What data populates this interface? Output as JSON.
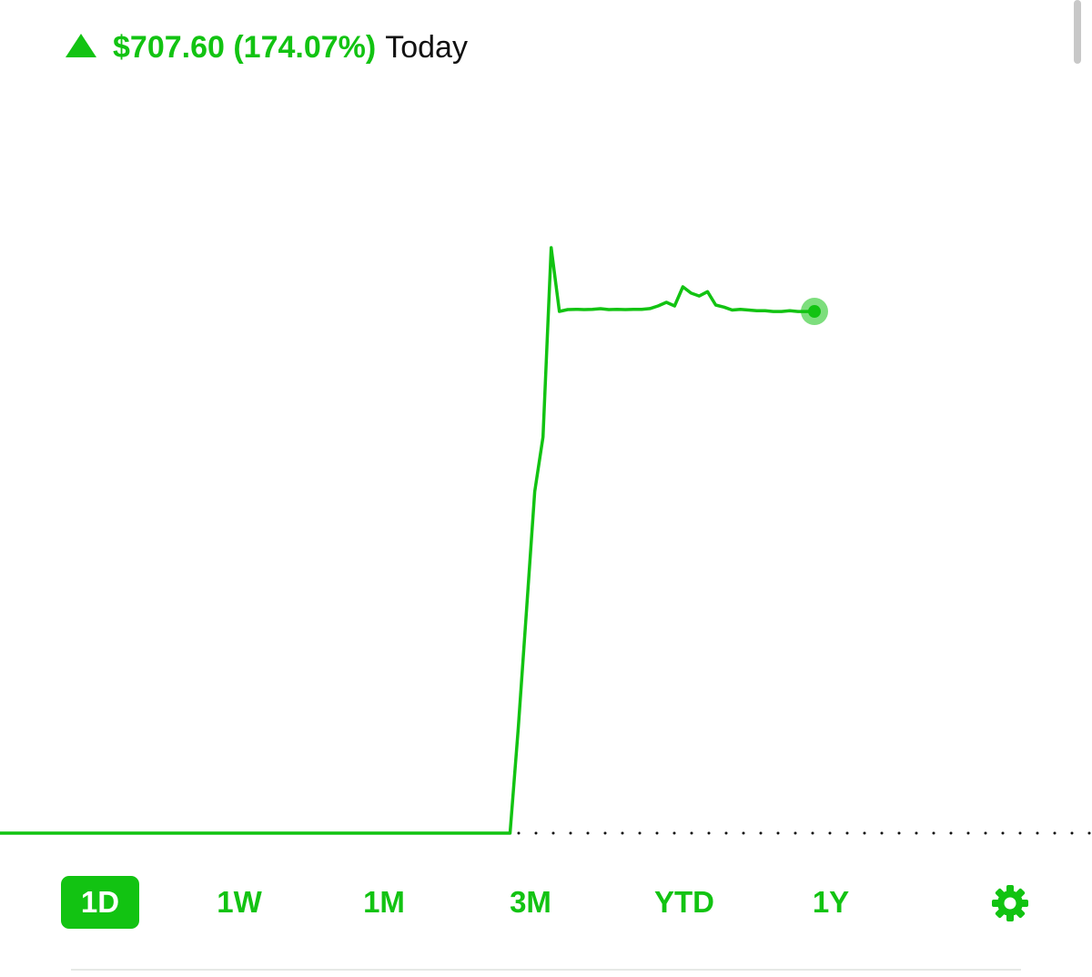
{
  "header": {
    "change": "$707.60 (174.07%)",
    "period": "Today"
  },
  "chart_data": {
    "type": "line",
    "color": "#12c312",
    "values": [
      406.5,
      406.5,
      406.5,
      406.5,
      406.5,
      406.5,
      406.5,
      406.5,
      406.5,
      406.5,
      406.5,
      406.5,
      406.5,
      406.5,
      406.5,
      406.5,
      406.5,
      406.5,
      406.5,
      406.5,
      406.5,
      406.5,
      406.5,
      406.5,
      406.5,
      406.5,
      406.5,
      406.5,
      406.5,
      406.5,
      406.5,
      406.5,
      406.5,
      406.5,
      406.5,
      406.5,
      406.5,
      406.5,
      406.5,
      406.5,
      406.5,
      406.5,
      406.5,
      406.5,
      406.5,
      406.5,
      406.5,
      406.5,
      406.5,
      406.5,
      406.5,
      406.5,
      406.5,
      406.5,
      406.5,
      406.5,
      406.5,
      406.5,
      406.5,
      406.5,
      406.5,
      406.5,
      406.5,
      548.5,
      709,
      869.6,
      943.7,
      1200.6,
      1114.1,
      1116.6,
      1117,
      1116.6,
      1117,
      1117.9,
      1116.6,
      1117,
      1116.6,
      1117,
      1117,
      1118,
      1121.5,
      1126.5,
      1121.5,
      1147.5,
      1139,
      1135,
      1141,
      1122.8,
      1120,
      1116,
      1117,
      1116,
      1115,
      1115,
      1114,
      1114,
      1115,
      1114,
      1114,
      1114.1
    ]
  },
  "ranges": [
    "1D",
    "1W",
    "1M",
    "3M",
    "YTD",
    "1Y"
  ]
}
